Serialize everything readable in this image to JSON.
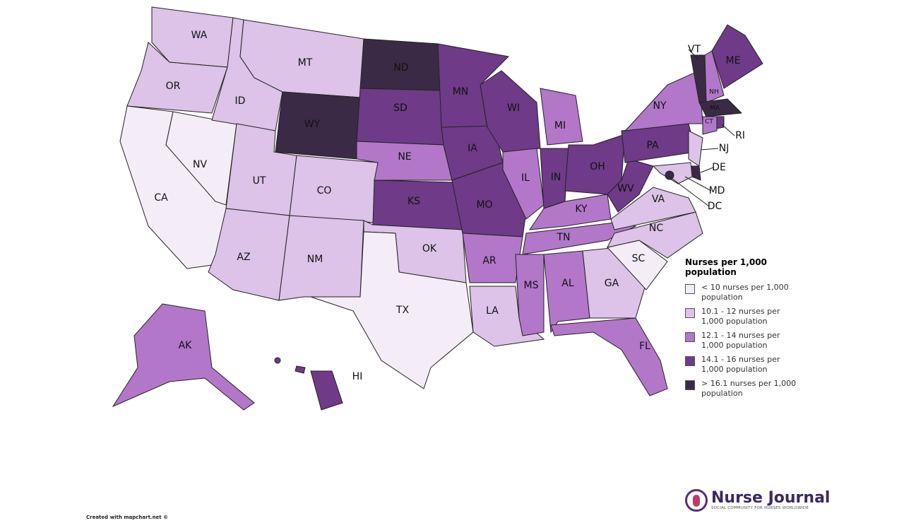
{
  "legend": {
    "title": "Nurses per 1,000 population",
    "items": [
      {
        "label": "< 10 nurses per 1,000 population",
        "color": "#f4edf7"
      },
      {
        "label": "10.1 - 12 nurses per 1,000 population",
        "color": "#dcc3e7"
      },
      {
        "label": "12.1 - 14 nurses per 1,000 population",
        "color": "#b277c9"
      },
      {
        "label": "14.1 - 16 nurses per 1,000 population",
        "color": "#6f3a87"
      },
      {
        "label": "> 16.1 nurses per 1,000 population",
        "color": "#3b2a45"
      }
    ]
  },
  "states": [
    {
      "label": "WA",
      "color": "#dcc3e7"
    },
    {
      "label": "OR",
      "color": "#dcc3e7"
    },
    {
      "label": "CA",
      "color": "#f4edf7"
    },
    {
      "label": "NV",
      "color": "#f4edf7"
    },
    {
      "label": "ID",
      "color": "#dcc3e7"
    },
    {
      "label": "MT",
      "color": "#dcc3e7"
    },
    {
      "label": "WY",
      "color": "#3b2a45"
    },
    {
      "label": "UT",
      "color": "#dcc3e7"
    },
    {
      "label": "CO",
      "color": "#dcc3e7"
    },
    {
      "label": "AZ",
      "color": "#dcc3e7"
    },
    {
      "label": "NM",
      "color": "#dcc3e7"
    },
    {
      "label": "ND",
      "color": "#3b2a45"
    },
    {
      "label": "SD",
      "color": "#6f3a87"
    },
    {
      "label": "NE",
      "color": "#b277c9"
    },
    {
      "label": "KS",
      "color": "#6f3a87"
    },
    {
      "label": "OK",
      "color": "#dcc3e7"
    },
    {
      "label": "TX",
      "color": "#f4edf7"
    },
    {
      "label": "MN",
      "color": "#6f3a87"
    },
    {
      "label": "IA",
      "color": "#6f3a87"
    },
    {
      "label": "MO",
      "color": "#6f3a87"
    },
    {
      "label": "AR",
      "color": "#b277c9"
    },
    {
      "label": "LA",
      "color": "#dcc3e7"
    },
    {
      "label": "WI",
      "color": "#6f3a87"
    },
    {
      "label": "IL",
      "color": "#b277c9"
    },
    {
      "label": "MI",
      "color": "#b277c9"
    },
    {
      "label": "IN",
      "color": "#6f3a87"
    },
    {
      "label": "OH",
      "color": "#6f3a87"
    },
    {
      "label": "KY",
      "color": "#b277c9"
    },
    {
      "label": "TN",
      "color": "#b277c9"
    },
    {
      "label": "MS",
      "color": "#b277c9"
    },
    {
      "label": "AL",
      "color": "#b277c9"
    },
    {
      "label": "GA",
      "color": "#dcc3e7"
    },
    {
      "label": "FL",
      "color": "#b277c9"
    },
    {
      "label": "SC",
      "color": "#f4edf7"
    },
    {
      "label": "NC",
      "color": "#dcc3e7"
    },
    {
      "label": "VA",
      "color": "#dcc3e7"
    },
    {
      "label": "WV",
      "color": "#6f3a87"
    },
    {
      "label": "PA",
      "color": "#6f3a87"
    },
    {
      "label": "NY",
      "color": "#b277c9"
    },
    {
      "label": "NJ",
      "color": "#dcc3e7"
    },
    {
      "label": "DE",
      "color": "#3b2a45"
    },
    {
      "label": "MD",
      "color": "#dcc3e7"
    },
    {
      "label": "VT",
      "color": "#3b2a45"
    },
    {
      "label": "NH",
      "color": "#b277c9"
    },
    {
      "label": "ME",
      "color": "#6f3a87"
    },
    {
      "label": "MA",
      "color": "#3b2a45"
    },
    {
      "label": "CT",
      "color": "#b277c9"
    },
    {
      "label": "RI",
      "color": "#6f3a87"
    },
    {
      "label": "AK",
      "color": "#b277c9"
    },
    {
      "label": "HI",
      "color": "#6f3a87"
    },
    {
      "label": "DC",
      "color": "#3b2a45"
    }
  ],
  "credit": "Created with mapchart.net ©",
  "logo": {
    "name": "Nurse Journal",
    "tagline": "SOCIAL COMMUNITY FOR NURSES WORLDWIDE"
  }
}
